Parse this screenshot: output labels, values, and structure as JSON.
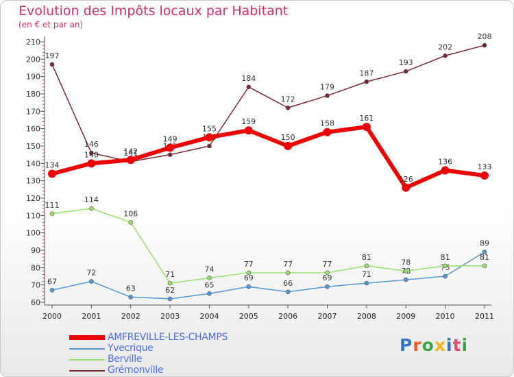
{
  "title": "Evolution des Impôts locaux par Habitant",
  "subtitle": "(en € et par an)",
  "logo": {
    "text": "Proxiti",
    "colors": [
      "#2f78c5",
      "#e85c25",
      "#3aa646",
      "#f2b61c",
      "#2f78c5",
      "#e84a78",
      "#3aa646"
    ]
  },
  "chart_data": {
    "type": "line",
    "x": [
      "2000",
      "2001",
      "2002",
      "2003",
      "2004",
      "2005",
      "2006",
      "2007",
      "2008",
      "2009",
      "2010",
      "2011"
    ],
    "ylim": [
      60,
      210
    ],
    "yticks": [
      60,
      70,
      80,
      90,
      100,
      110,
      120,
      130,
      140,
      150,
      160,
      170,
      180,
      190,
      200,
      210
    ],
    "grid": false,
    "legend_position": "bottom-left",
    "series": [
      {
        "name": "AMFREVILLE-LES-CHAMPS",
        "color": "#ee0000",
        "values": [
          134,
          140,
          142,
          149,
          155,
          159,
          150,
          158,
          161,
          126,
          136,
          133
        ]
      },
      {
        "name": "Yvecrique",
        "color": "#5597d4",
        "values": [
          67,
          72,
          63,
          62,
          65,
          69,
          66,
          69,
          71,
          73,
          75,
          89
        ]
      },
      {
        "name": "Berville",
        "color": "#99e06b",
        "values": [
          111,
          114,
          106,
          71,
          74,
          77,
          77,
          77,
          81,
          78,
          81,
          81
        ]
      },
      {
        "name": "Grémonville",
        "color": "#7a2630",
        "values": [
          197,
          146,
          141,
          145,
          150,
          184,
          172,
          179,
          187,
          193,
          202,
          208
        ]
      }
    ]
  }
}
